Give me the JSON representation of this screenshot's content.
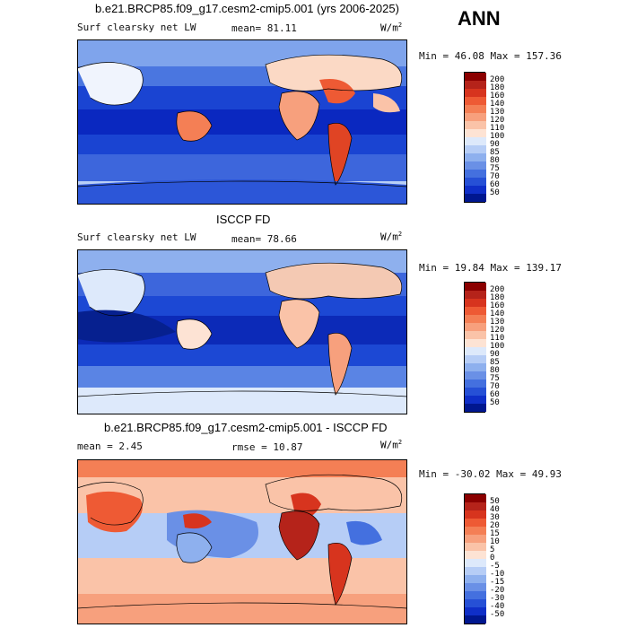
{
  "season": "ANN",
  "panels": [
    {
      "title": "b.e21.BRCP85.f09_g17.cesm2-cmip5.001 (yrs 2006-2025)",
      "left_label": "Surf clearsky net LW",
      "stat": "mean=  81.11",
      "units": "W/m",
      "units_exp": "2",
      "minmax": "Min =  46.08 Max = 157.36"
    },
    {
      "title": "ISCCP FD",
      "left_label": "Surf clearsky net LW",
      "stat": "mean=  78.66",
      "units": "W/m",
      "units_exp": "2",
      "minmax": "Min =  19.84 Max = 139.17"
    },
    {
      "title": "b.e21.BRCP85.f09_g17.cesm2-cmip5.001 - ISCCP FD",
      "left_label": "mean =   2.45",
      "stat": "rmse =  10.87",
      "units": "W/m",
      "units_exp": "2",
      "minmax": "Min = -30.02  Max =  49.93"
    }
  ],
  "chart_data": [
    {
      "type": "heatmap",
      "title": "b.e21.BRCP85.f09_g17.cesm2-cmip5.001 (yrs 2006-2025)",
      "variable": "Surf clearsky net LW",
      "mean": 81.11,
      "min": 46.08,
      "max": 157.36,
      "levels": [
        "200",
        "180",
        "160",
        "140",
        "130",
        "120",
        "110",
        "100",
        "90",
        "85",
        "80",
        "75",
        "70",
        "60",
        "50"
      ],
      "colors": [
        "#8b0000",
        "#b5231a",
        "#d7341e",
        "#ee5a34",
        "#f47f55",
        "#f7a07d",
        "#fac3a8",
        "#fde3d4",
        "#dde9fb",
        "#b6cdf6",
        "#8eb0ee",
        "#6a90e6",
        "#4470df",
        "#2650d6",
        "#0f2fc8",
        "#00178f"
      ]
    },
    {
      "type": "heatmap",
      "title": "ISCCP FD",
      "variable": "Surf clearsky net LW",
      "mean": 78.66,
      "min": 19.84,
      "max": 139.17,
      "levels": [
        "200",
        "180",
        "160",
        "140",
        "130",
        "120",
        "110",
        "100",
        "90",
        "85",
        "80",
        "75",
        "70",
        "60",
        "50"
      ],
      "colors": [
        "#8b0000",
        "#b5231a",
        "#d7341e",
        "#ee5a34",
        "#f47f55",
        "#f7a07d",
        "#fac3a8",
        "#fde3d4",
        "#dde9fb",
        "#b6cdf6",
        "#8eb0ee",
        "#6a90e6",
        "#4470df",
        "#2650d6",
        "#0f2fc8",
        "#00178f"
      ]
    },
    {
      "type": "heatmap",
      "title": "b.e21.BRCP85.f09_g17.cesm2-cmip5.001 - ISCCP FD",
      "mean": 2.45,
      "rmse": 10.87,
      "min": -30.02,
      "max": 49.93,
      "levels": [
        "50",
        "40",
        "30",
        "20",
        "15",
        "10",
        "5",
        "0",
        "-5",
        "-10",
        "-15",
        "-20",
        "-30",
        "-40",
        "-50"
      ],
      "colors": [
        "#8b0000",
        "#b5231a",
        "#d7341e",
        "#ee5a34",
        "#f47f55",
        "#f7a07d",
        "#fac3a8",
        "#fde3d4",
        "#dde9fb",
        "#b6cdf6",
        "#8eb0ee",
        "#6a90e6",
        "#4470df",
        "#2650d6",
        "#0f2fc8",
        "#00178f"
      ]
    }
  ]
}
